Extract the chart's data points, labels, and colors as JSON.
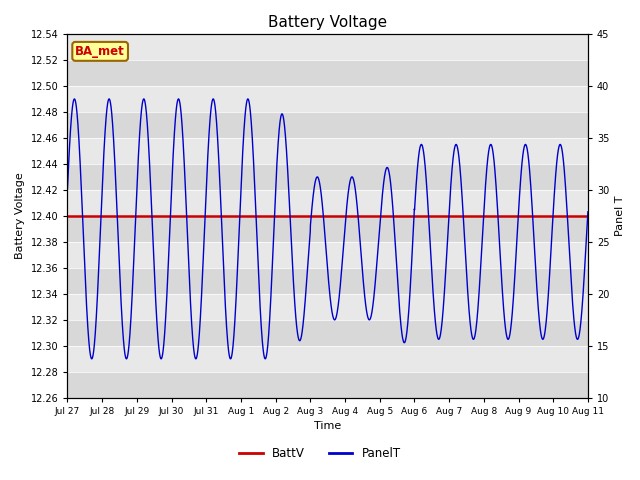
{
  "title": "Battery Voltage",
  "ylabel_left": "Battery Voltage",
  "ylabel_right": "Panel T",
  "xlabel": "Time",
  "xlim": [
    0,
    15
  ],
  "ylim_left": [
    12.26,
    12.54
  ],
  "ylim_right": [
    10,
    45
  ],
  "battv_value": 12.4,
  "battv_color": "#cc0000",
  "panelt_color": "#0000cc",
  "background_dark": "#d8d8d8",
  "background_light": "#e8e8e8",
  "label_box_text": "BA_met",
  "label_box_facecolor": "#ffff99",
  "label_box_edgecolor": "#996600",
  "label_box_textcolor": "#cc0000",
  "xtick_labels": [
    "Jul 27",
    "Jul 28",
    "Jul 29",
    "Jul 30",
    "Jul 31",
    "Aug 1",
    "Aug 2",
    "Aug 3",
    "Aug 4",
    "Aug 5",
    "Aug 6",
    "Aug 7",
    "Aug 8",
    "Aug 9",
    "Aug 10",
    "Aug 11"
  ],
  "yticks_left": [
    12.26,
    12.28,
    12.3,
    12.32,
    12.34,
    12.36,
    12.38,
    12.4,
    12.42,
    12.44,
    12.46,
    12.48,
    12.5,
    12.52,
    12.54
  ],
  "yticks_right": [
    10,
    15,
    20,
    25,
    30,
    35,
    40,
    45
  ]
}
